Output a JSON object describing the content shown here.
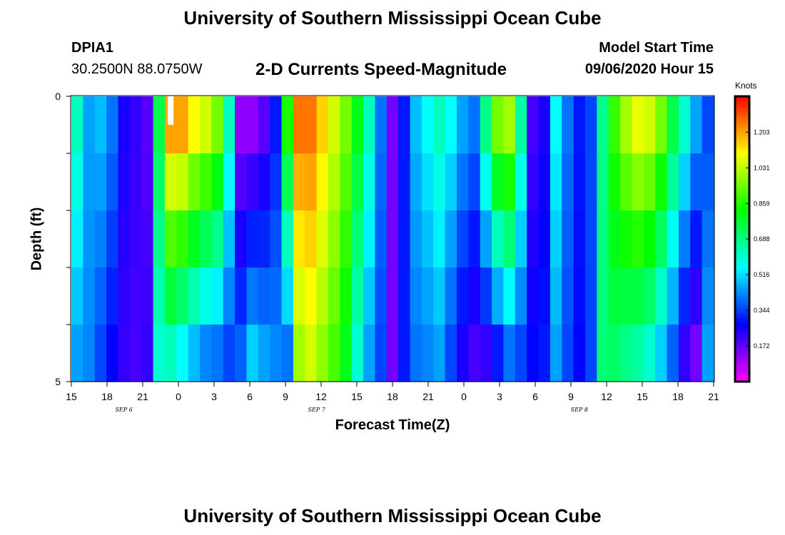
{
  "header": {
    "title": "University of Southern Mississippi Ocean Cube",
    "station_id": "DPIA1",
    "station_coords": "30.2500N 88.0750W",
    "chart_title": "2-D Currents Speed-Magnitude",
    "model_start_label": "Model Start Time",
    "model_start_value": "09/06/2020 Hour 15"
  },
  "footer": {
    "title": "University of Southern Mississippi Ocean Cube"
  },
  "chart_data": {
    "type": "heatmap",
    "title": "2-D Currents Speed-Magnitude",
    "xlabel": "Forecast Time(Z)",
    "ylabel": "Depth (ft)",
    "ylim": [
      0,
      5
    ],
    "y_tick_labels": [
      "0",
      "5"
    ],
    "depth_levels": 5,
    "x_tick_labels": [
      "15",
      "18",
      "21",
      "0",
      "3",
      "6",
      "9",
      "12",
      "15",
      "18",
      "21",
      "0",
      "3",
      "6",
      "9",
      "12",
      "15",
      "18",
      "21"
    ],
    "day_labels": [
      {
        "label": "SEP 6",
        "hour_index": 4.5
      },
      {
        "label": "SEP 7",
        "hour_index": 21
      },
      {
        "label": "SEP 8",
        "hour_index": 43.5
      }
    ],
    "hours": 55,
    "colorbar": {
      "unit": "Knots",
      "ticks": [
        "0.172",
        "0.344",
        "0.516",
        "0.688",
        "0.859",
        "1.031",
        "1.203"
      ],
      "min": 0,
      "max": 1.376
    },
    "surface": [
      0.62,
      0.45,
      0.48,
      0.4,
      0.25,
      0.22,
      0.18,
      0.75,
      1.2,
      1.2,
      1.1,
      1.05,
      0.95,
      0.62,
      0.12,
      0.12,
      0.18,
      0.3,
      0.85,
      1.25,
      1.25,
      1.15,
      1.05,
      0.95,
      0.8,
      0.62,
      0.4,
      0.15,
      0.3,
      0.48,
      0.55,
      0.62,
      0.55,
      0.45,
      0.4,
      0.68,
      0.95,
      1.0,
      0.65,
      0.2,
      0.25,
      0.55,
      0.4,
      0.3,
      0.35,
      0.68,
      0.88,
      1.0,
      1.08,
      1.05,
      0.95,
      0.75,
      0.6,
      0.45,
      0.35
    ],
    "bottom": [
      0.45,
      0.42,
      0.35,
      0.28,
      0.22,
      0.2,
      0.22,
      0.6,
      0.62,
      0.55,
      0.48,
      0.42,
      0.4,
      0.35,
      0.38,
      0.5,
      0.45,
      0.42,
      0.4,
      1.0,
      1.05,
      0.98,
      0.9,
      0.8,
      0.6,
      0.45,
      0.35,
      0.15,
      0.3,
      0.4,
      0.42,
      0.45,
      0.35,
      0.25,
      0.2,
      0.22,
      0.3,
      0.4,
      0.35,
      0.28,
      0.3,
      0.45,
      0.35,
      0.28,
      0.35,
      0.7,
      0.72,
      0.68,
      0.65,
      0.6,
      0.5,
      0.38,
      0.22,
      0.15,
      0.45
    ],
    "missing_cells": [
      {
        "hour_index": 8,
        "depth_index": 0
      }
    ]
  }
}
